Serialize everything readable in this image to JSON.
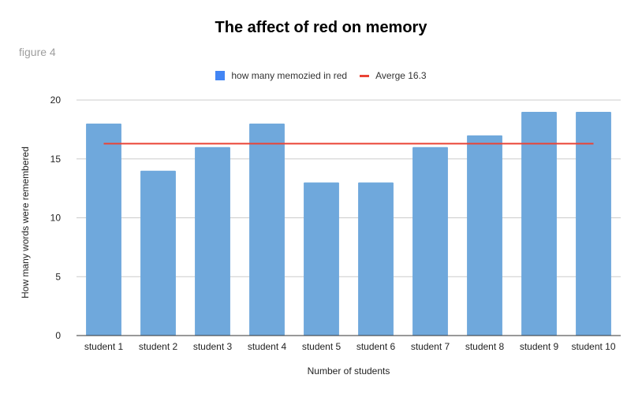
{
  "chart_data": {
    "type": "bar",
    "title": "The affect of red on memory",
    "subtitle": "figure 4",
    "xlabel": "Number of students",
    "ylabel": "How many words were remembered",
    "ylim": [
      0,
      20
    ],
    "yticks": [
      0,
      5,
      10,
      15,
      20
    ],
    "grid": true,
    "legend_position": "top",
    "categories": [
      "student 1",
      "student 2",
      "student 3",
      "student 4",
      "student 5",
      "student 6",
      "student 7",
      "student 8",
      "student 9",
      "student 10"
    ],
    "series": [
      {
        "name": "how many memozied in red",
        "type": "bar",
        "color": "#6fa8dc",
        "legend_color": "#4285f4",
        "values": [
          18,
          14,
          16,
          18,
          13,
          13,
          16,
          17,
          19,
          19
        ]
      },
      {
        "name": "Averge 16.3",
        "type": "line",
        "color": "#ea4335",
        "value": 16.3
      }
    ]
  }
}
